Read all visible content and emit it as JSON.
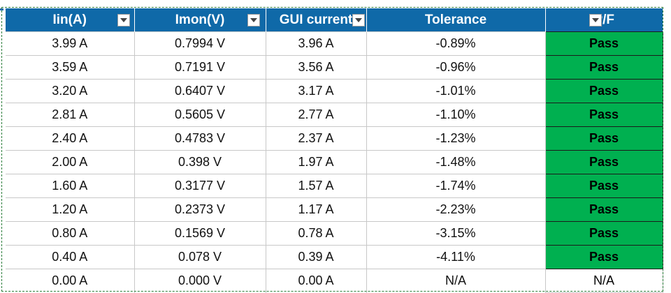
{
  "columns": [
    {
      "label": "Iin(A)"
    },
    {
      "label": "Imon(V)"
    },
    {
      "label": "GUI current"
    },
    {
      "label": "Tolerance"
    },
    {
      "label": "P/F"
    }
  ],
  "rows": [
    {
      "iin": "3.99 A",
      "imon": "0.7994 V",
      "gui": "3.96 A",
      "tol": "-0.89%",
      "pf": "Pass"
    },
    {
      "iin": "3.59 A",
      "imon": "0.7191 V",
      "gui": "3.56 A",
      "tol": "-0.96%",
      "pf": "Pass"
    },
    {
      "iin": "3.20 A",
      "imon": "0.6407 V",
      "gui": "3.17 A",
      "tol": "-1.01%",
      "pf": "Pass"
    },
    {
      "iin": "2.81 A",
      "imon": "0.5605 V",
      "gui": "2.77 A",
      "tol": "-1.10%",
      "pf": "Pass"
    },
    {
      "iin": "2.40 A",
      "imon": "0.4783 V",
      "gui": "2.37 A",
      "tol": "-1.23%",
      "pf": "Pass"
    },
    {
      "iin": "2.00 A",
      "imon": "0.398 V",
      "gui": "1.97 A",
      "tol": "-1.48%",
      "pf": "Pass"
    },
    {
      "iin": "1.60 A",
      "imon": "0.3177 V",
      "gui": "1.57 A",
      "tol": "-1.74%",
      "pf": "Pass"
    },
    {
      "iin": "1.20 A",
      "imon": "0.2373 V",
      "gui": "1.17 A",
      "tol": "-2.23%",
      "pf": "Pass"
    },
    {
      "iin": "0.80 A",
      "imon": "0.1569 V",
      "gui": "0.78 A",
      "tol": "-3.15%",
      "pf": "Pass"
    },
    {
      "iin": "0.40 A",
      "imon": "0.078 V",
      "gui": "0.39 A",
      "tol": "-4.11%",
      "pf": "Pass"
    },
    {
      "iin": "0.00 A",
      "imon": "0.000 V",
      "gui": "0.00 A",
      "tol": "N/A",
      "pf": "N/A"
    }
  ],
  "colors": {
    "header_bg": "#0f69a8",
    "header_text": "#ffffff",
    "pass_bg": "#00b050",
    "selection_border": "#2a7d3a"
  },
  "icons": {
    "filter": "chevron-down-icon"
  }
}
